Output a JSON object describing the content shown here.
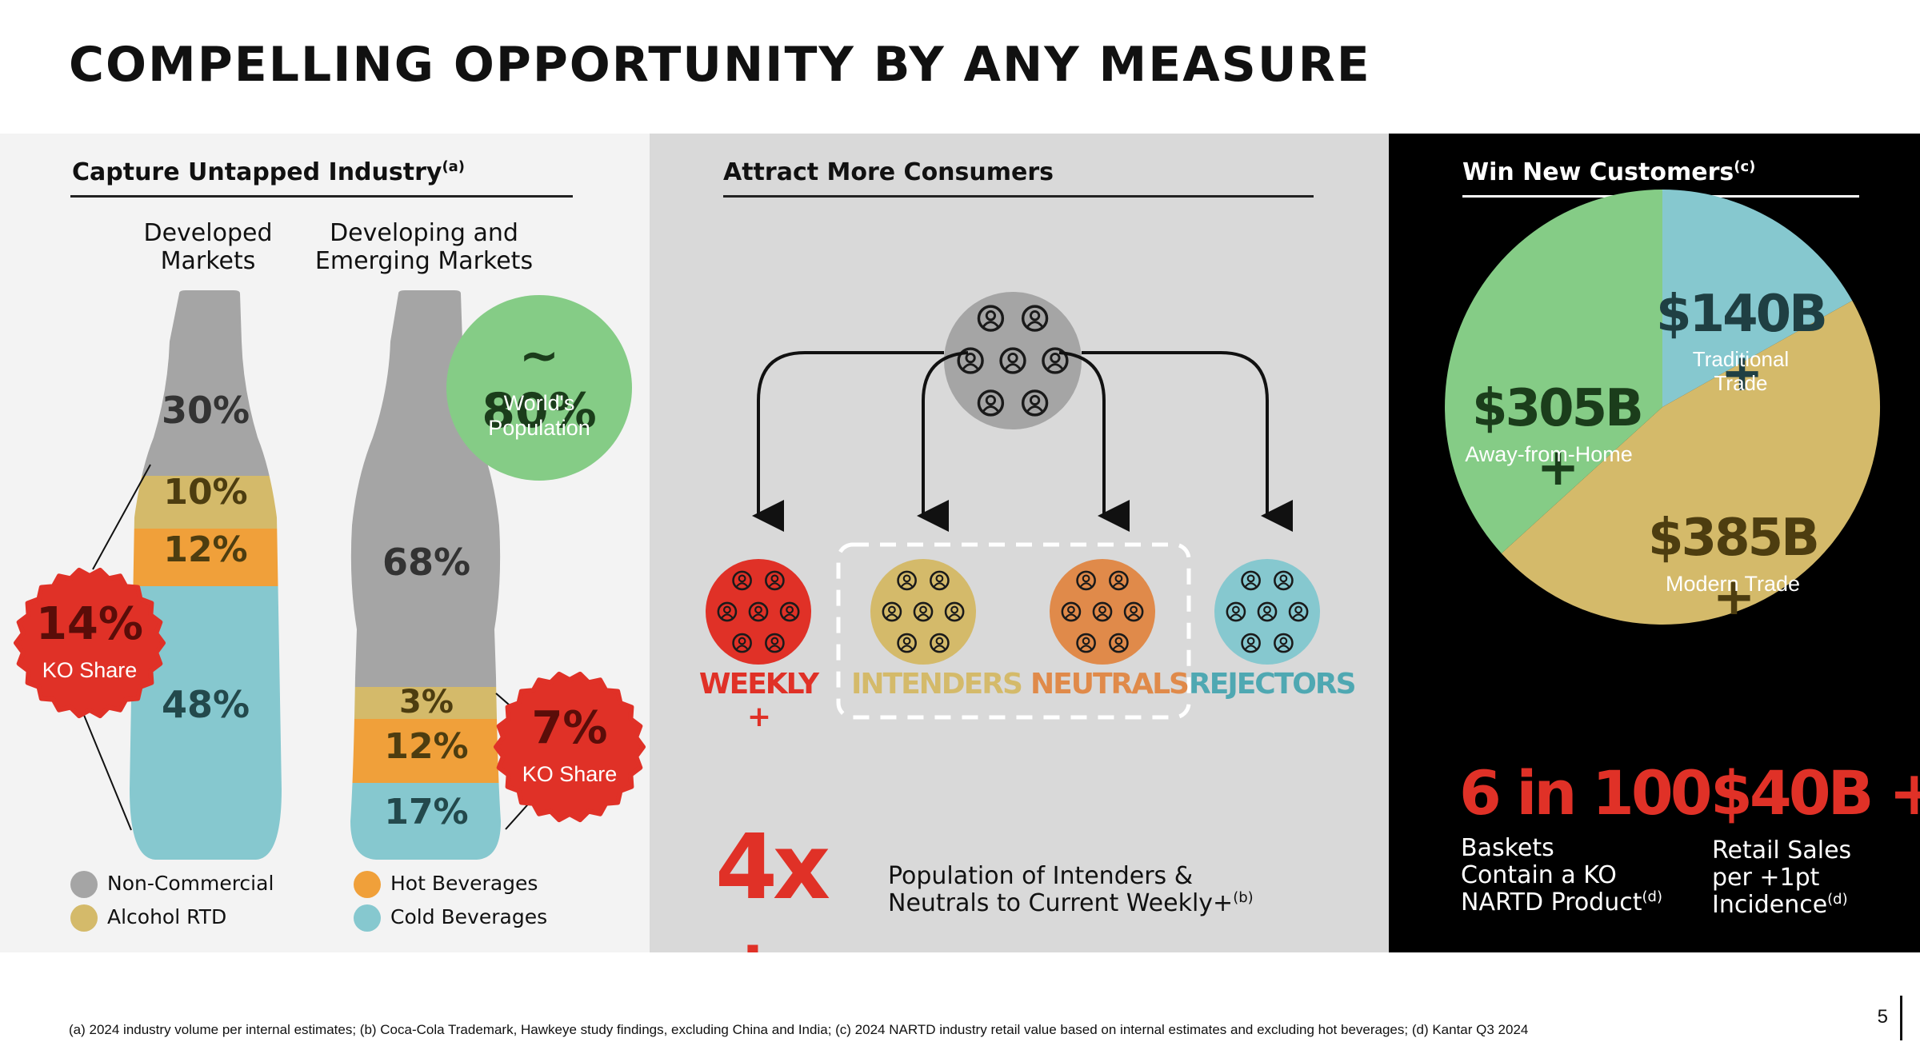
{
  "title": "COMPELLING OPPORTUNITY BY ANY MEASURE",
  "panel1": {
    "heading": "Capture Untapped Industry",
    "heading_sup": "(a)",
    "developed_label": [
      "Developed",
      "Markets"
    ],
    "developing_label": [
      "Developing and",
      "Emerging Markets"
    ],
    "developed": {
      "non_commercial": "30%",
      "alcohol_rtd": "10%",
      "hot_beverages": "12%",
      "cold_beverages": "48%"
    },
    "developing": {
      "non_commercial": "68%",
      "alcohol_rtd": "3%",
      "hot_beverages": "12%",
      "cold_beverages": "17%"
    },
    "developed_shares": [
      30,
      10,
      12,
      48
    ],
    "developing_shares": [
      68,
      3,
      12,
      17
    ],
    "population_value": "~ 80%",
    "population_label": [
      "World's",
      "Population"
    ],
    "badge_left_value": "14%",
    "badge_left_label": "KO Share",
    "badge_right_value": "7%",
    "badge_right_label": "KO Share",
    "legend": [
      "Non-Commercial",
      "Alcohol RTD",
      "Hot Beverages",
      "Cold Beverages"
    ],
    "colors": {
      "non_commercial": "#a5a5a5",
      "alcohol_rtd": "#d4ba6a",
      "hot_beverages": "#f0a03a",
      "cold_beverages": "#86c8cf",
      "badge": "#e03127",
      "population": "#85cc86"
    }
  },
  "panel2": {
    "heading": "Attract More Consumers",
    "segments": [
      "WEEKLY +",
      "INTENDERS",
      "NEUTRALS",
      "REJECTORS"
    ],
    "segment_colors": [
      "#e03127",
      "#d4ba6a",
      "#e08a4a",
      "#86c8cf"
    ],
    "multiplier": "4x +",
    "multiplier_text": [
      "Population of Intenders &",
      "Neutrals to Current Weekly+"
    ],
    "multiplier_sup": "(b)"
  },
  "panel3": {
    "heading": "Win New Customers",
    "heading_sup": "(c)",
    "chart_data": {
      "type": "pie",
      "categories": [
        "Traditional Trade",
        "Modern Trade",
        "Away-from-Home"
      ],
      "values": [
        140,
        385,
        305
      ],
      "value_labels": [
        "$140B +",
        "$385B +",
        "$305B +"
      ],
      "colors": [
        "#86c8cf",
        "#d4ba6a",
        "#85cc86"
      ]
    },
    "label_traditional": [
      "Traditional",
      "Trade"
    ],
    "stat1_value": "6 in 100",
    "stat1_text": [
      "Baskets",
      "Contain a KO",
      "NARTD Product"
    ],
    "stat1_sup": "(d)",
    "stat2_value": "$40B +",
    "stat2_text": [
      "Retail Sales",
      "per +1pt",
      "Incidence"
    ],
    "stat2_sup": "(d)"
  },
  "footnote": "(a) 2024 industry volume per internal estimates; (b) Coca-Cola Trademark, Hawkeye study findings, excluding China and India; (c) 2024 NARTD industry retail value based on internal estimates and excluding hot beverages; (d) Kantar Q3 2024",
  "page_number": "5"
}
